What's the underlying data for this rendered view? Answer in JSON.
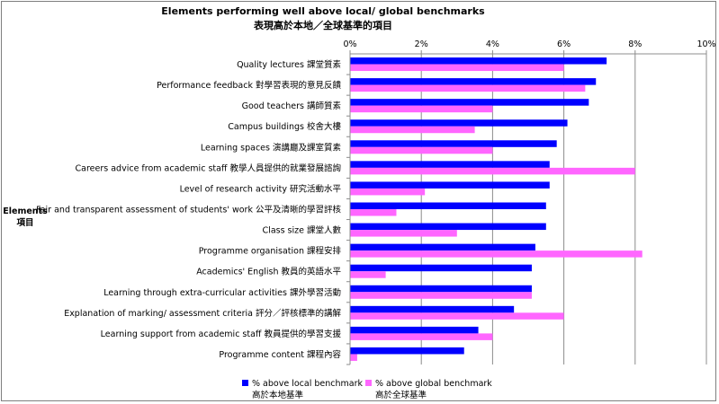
{
  "chart_data": {
    "type": "bar",
    "orientation": "horizontal",
    "title": "Elements performing well above local/ global benchmarks",
    "subtitle": "表現高於本地／全球基準的項目",
    "ylabel": "Elements",
    "ylabel_zh": "項目",
    "xlim": [
      0,
      10
    ],
    "x_ticks": [
      "0%",
      "2%",
      "4%",
      "6%",
      "8%",
      "10%"
    ],
    "x_tick_values": [
      0,
      2,
      4,
      6,
      8,
      10
    ],
    "grid": true,
    "legend_position": "bottom",
    "categories": [
      "Quality lectures 課堂質素",
      "Performance feedback 對學習表現的意見反饋",
      "Good teachers 講師質素",
      "Campus buildings 校舍大樓",
      "Learning spaces 演講廳及課室質素",
      "Careers advice from academic staff 教學人員提供的就業發展諮詢",
      "Level of research activity 研究活動水平",
      "Fair and transparent assessment of students' work 公平及清晰的學習評核",
      "Class size 課堂人數",
      "Programme organisation 課程安排",
      "Academics' English 教員的英語水平",
      "Learning through extra-curricular activities 課外學習活動",
      "Explanation of marking/ assessment criteria 評分／評核標準的講解",
      "Learning support from academic staff 教員提供的學習支援",
      "Programme content 課程內容"
    ],
    "series": [
      {
        "name": "% above local benchmark",
        "name_zh": "高於本地基準",
        "color": "#0000ff",
        "values": [
          7.2,
          6.9,
          6.7,
          6.1,
          5.8,
          5.6,
          5.6,
          5.5,
          5.5,
          5.2,
          5.1,
          5.1,
          4.6,
          3.6,
          3.2
        ]
      },
      {
        "name": "% above global benchmark",
        "name_zh": "高於全球基準",
        "color": "#ff66ff",
        "values": [
          6.0,
          6.6,
          4.0,
          3.5,
          4.0,
          8.0,
          2.1,
          1.3,
          3.0,
          8.2,
          1.0,
          5.1,
          6.0,
          4.0,
          0.2
        ]
      }
    ]
  }
}
